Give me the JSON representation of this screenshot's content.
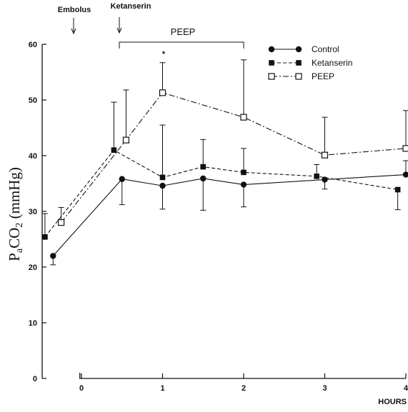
{
  "chart_data": {
    "type": "line",
    "ylabel": "PaCO2 (mmHg)",
    "xlabel": "HOURS",
    "x_ticks": [
      "0",
      "1",
      "2",
      "3",
      "4"
    ],
    "y_ticks": [
      "0",
      "10",
      "20",
      "30",
      "40",
      "50",
      "60"
    ],
    "ylim": [
      0,
      60
    ],
    "xlim": [
      -0.45,
      4
    ],
    "grid": false,
    "legend_position": "top-right",
    "annotations": {
      "embolus": "Embolus",
      "ketanserin": "Ketanserin",
      "peep_bracket": "PEEP",
      "significance": "*"
    },
    "series": [
      {
        "name": "Control",
        "marker": "filled-circle",
        "line": "solid",
        "x": [
          -0.35,
          0.5,
          1,
          1.5,
          2,
          3,
          4
        ],
        "y": [
          22,
          35.8,
          34.6,
          35.9,
          34.8,
          35.7,
          36.6
        ],
        "err_lower": [
          1.6,
          4.6,
          4.2,
          5.7,
          4.0,
          1.7,
          0
        ],
        "err_upper": [
          0,
          0,
          0,
          0,
          0,
          0,
          2.5
        ]
      },
      {
        "name": "Ketanserin",
        "marker": "filled-square",
        "line": "dashed",
        "x": [
          -0.45,
          0.4,
          1,
          1.5,
          2,
          2.9,
          3.9
        ],
        "y": [
          25.4,
          41,
          36.1,
          38,
          37,
          36.3,
          33.9
        ],
        "err_lower": [
          0,
          0,
          0,
          0,
          0,
          0,
          3.6
        ],
        "err_upper": [
          4.2,
          8.6,
          9.4,
          4.9,
          4.3,
          2.1,
          0
        ]
      },
      {
        "name": "PEEP",
        "marker": "open-square",
        "line": "dash-dot",
        "x": [
          -0.25,
          0.55,
          1,
          2,
          3,
          4
        ],
        "y": [
          28,
          42.8,
          51.3,
          46.9,
          40.1,
          41.3
        ],
        "err_lower": [
          0,
          0,
          0,
          0,
          0,
          0
        ],
        "err_upper": [
          2.7,
          9,
          5.4,
          10.3,
          6.8,
          6.8
        ]
      }
    ]
  }
}
